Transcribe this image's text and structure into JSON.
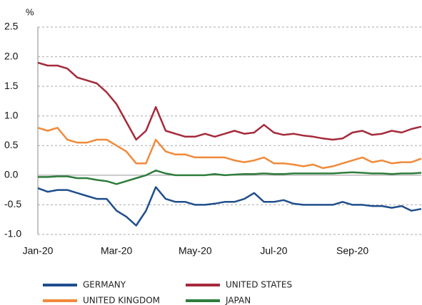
{
  "chart_data": {
    "type": "line",
    "y_label": "%",
    "categories": [
      "Jan-20",
      null,
      null,
      null,
      null,
      null,
      null,
      null,
      "Mar-20",
      null,
      null,
      null,
      null,
      null,
      null,
      null,
      "May-20",
      null,
      null,
      null,
      null,
      null,
      null,
      null,
      "Jul-20",
      null,
      null,
      null,
      null,
      null,
      null,
      null,
      "Sep-20",
      null,
      null,
      null,
      null,
      null,
      null,
      null
    ],
    "ylim": [
      -1.0,
      2.5
    ],
    "yticks": [
      {
        "value": -1.0,
        "label": "-1.0"
      },
      -0.5,
      {
        "value": 0.0,
        "label": "0.0"
      },
      0.5,
      {
        "value": 1.0,
        "label": "1.0"
      },
      1.5,
      {
        "value": 2.0,
        "label": "2.0"
      },
      2.5
    ],
    "grid": true,
    "series": [
      {
        "name": "GERMANY",
        "color": "#1f4e8c",
        "values": [
          -0.22,
          -0.28,
          -0.25,
          -0.25,
          -0.3,
          -0.35,
          -0.4,
          -0.4,
          -0.6,
          -0.7,
          -0.85,
          -0.6,
          -0.2,
          -0.4,
          -0.45,
          -0.45,
          -0.5,
          -0.5,
          -0.48,
          -0.45,
          -0.45,
          -0.4,
          -0.3,
          -0.45,
          -0.45,
          -0.42,
          -0.48,
          -0.5,
          -0.5,
          -0.5,
          -0.5,
          -0.45,
          -0.5,
          -0.5,
          -0.52,
          -0.52,
          -0.55,
          -0.52,
          -0.6,
          -0.57
        ]
      },
      {
        "name": "UNITED STATES",
        "color": "#a52a3a",
        "values": [
          1.9,
          1.85,
          1.85,
          1.8,
          1.65,
          1.6,
          1.55,
          1.4,
          1.2,
          0.9,
          0.6,
          0.75,
          1.15,
          0.75,
          0.7,
          0.65,
          0.65,
          0.7,
          0.65,
          0.7,
          0.75,
          0.7,
          0.72,
          0.85,
          0.72,
          0.68,
          0.7,
          0.67,
          0.65,
          0.62,
          0.6,
          0.62,
          0.72,
          0.75,
          0.68,
          0.7,
          0.75,
          0.72,
          0.78,
          0.82
        ]
      },
      {
        "name": "UNITED KINGDOM",
        "color": "#f08a3a",
        "values": [
          0.8,
          0.75,
          0.8,
          0.6,
          0.55,
          0.55,
          0.6,
          0.6,
          0.5,
          0.4,
          0.2,
          0.2,
          0.6,
          0.4,
          0.35,
          0.35,
          0.3,
          0.3,
          0.3,
          0.3,
          0.25,
          0.22,
          0.25,
          0.3,
          0.2,
          0.2,
          0.18,
          0.15,
          0.18,
          0.12,
          0.15,
          0.2,
          0.25,
          0.3,
          0.22,
          0.25,
          0.2,
          0.22,
          0.22,
          0.28
        ]
      },
      {
        "name": "JAPAN",
        "color": "#2e7d3c",
        "values": [
          -0.03,
          -0.03,
          -0.02,
          -0.02,
          -0.05,
          -0.05,
          -0.08,
          -0.1,
          -0.15,
          -0.1,
          -0.05,
          0.0,
          0.08,
          0.03,
          0.0,
          0.0,
          0.0,
          0.0,
          0.02,
          0.0,
          0.01,
          0.02,
          0.02,
          0.03,
          0.02,
          0.02,
          0.03,
          0.03,
          0.03,
          0.03,
          0.03,
          0.04,
          0.05,
          0.04,
          0.03,
          0.03,
          0.02,
          0.03,
          0.03,
          0.04
        ]
      }
    ]
  }
}
